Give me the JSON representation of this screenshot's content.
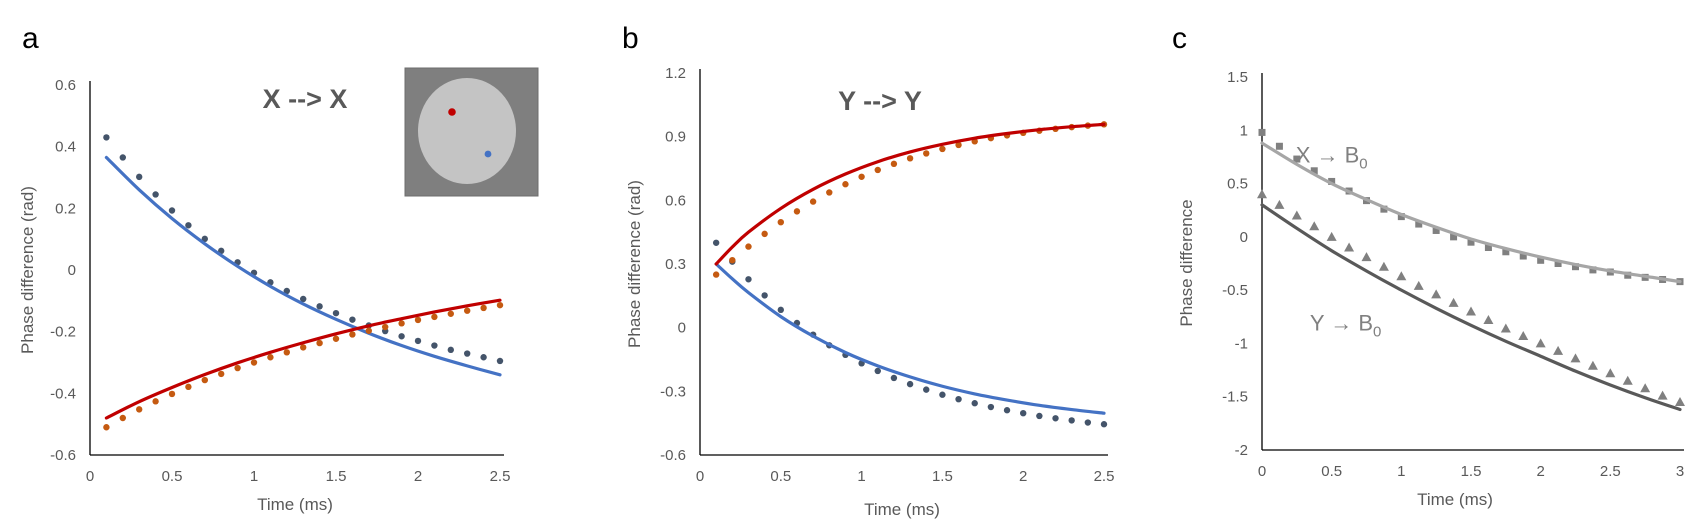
{
  "chart_data": [
    {
      "panel_label": "a",
      "type": "scatter",
      "title": "X --> X",
      "xlabel": "Time (ms)",
      "ylabel": "Phase difference (rad)",
      "xlim": [
        0,
        2.5
      ],
      "ylim": [
        -0.6,
        0.6
      ],
      "xticks": [
        0,
        0.5,
        1,
        1.5,
        2,
        2.5
      ],
      "xtick_labels": [
        "0",
        "0.5",
        "1",
        "1.5",
        "2",
        "2.5"
      ],
      "yticks": [
        -0.6,
        -0.4,
        -0.2,
        0,
        0.2,
        0.4,
        0.6
      ],
      "ytick_labels": [
        "-0.6",
        "-0.4",
        "-0.2",
        "0",
        "0.2",
        "0.4",
        "0.6"
      ],
      "inset": {
        "background": "#7f7f7f",
        "disc": "#c4c4c4",
        "red_dot": "#c00000",
        "blue_dot": "#4472c4"
      },
      "series": [
        {
          "name": "blue measured",
          "kind": "dots",
          "color": "#44546a",
          "x": [
            0.1,
            0.2,
            0.3,
            0.4,
            0.5,
            0.6,
            0.7,
            0.8,
            0.9,
            1.0,
            1.1,
            1.2,
            1.3,
            1.4,
            1.5,
            1.6,
            1.7,
            1.8,
            1.9,
            2.0,
            2.1,
            2.2,
            2.3,
            2.4,
            2.5
          ],
          "y": [
            0.43,
            0.365,
            0.302,
            0.245,
            0.193,
            0.145,
            0.101,
            0.062,
            0.025,
            -0.009,
            -0.04,
            -0.068,
            -0.094,
            -0.118,
            -0.14,
            -0.161,
            -0.18,
            -0.198,
            -0.215,
            -0.23,
            -0.245,
            -0.259,
            -0.271,
            -0.283,
            -0.295
          ]
        },
        {
          "name": "blue fit",
          "kind": "line",
          "color": "#4472c4",
          "x": [
            0.1,
            0.3,
            0.5,
            0.7,
            0.9,
            1.1,
            1.3,
            1.5,
            1.7,
            1.9,
            2.1,
            2.3,
            2.5
          ],
          "y": [
            0.365,
            0.26,
            0.167,
            0.085,
            0.012,
            -0.053,
            -0.11,
            -0.16,
            -0.205,
            -0.245,
            -0.28,
            -0.311,
            -0.34
          ]
        },
        {
          "name": "red measured",
          "kind": "dots",
          "color": "#c55a11",
          "x": [
            0.1,
            0.2,
            0.3,
            0.4,
            0.5,
            0.6,
            0.7,
            0.8,
            0.9,
            1.0,
            1.1,
            1.2,
            1.3,
            1.4,
            1.5,
            1.6,
            1.7,
            1.8,
            1.9,
            2.0,
            2.1,
            2.2,
            2.3,
            2.4,
            2.5
          ],
          "y": [
            -0.51,
            -0.48,
            -0.452,
            -0.426,
            -0.402,
            -0.379,
            -0.357,
            -0.337,
            -0.318,
            -0.3,
            -0.283,
            -0.267,
            -0.251,
            -0.237,
            -0.223,
            -0.209,
            -0.197,
            -0.185,
            -0.173,
            -0.162,
            -0.152,
            -0.142,
            -0.132,
            -0.123,
            -0.114
          ]
        },
        {
          "name": "red fit",
          "kind": "line",
          "color": "#c00000",
          "x": [
            0.1,
            0.3,
            0.5,
            0.7,
            0.9,
            1.1,
            1.3,
            1.5,
            1.7,
            1.9,
            2.1,
            2.3,
            2.5
          ],
          "y": [
            -0.48,
            -0.427,
            -0.381,
            -0.339,
            -0.301,
            -0.267,
            -0.236,
            -0.207,
            -0.181,
            -0.158,
            -0.136,
            -0.116,
            -0.098
          ]
        }
      ]
    },
    {
      "panel_label": "b",
      "type": "scatter",
      "title": "Y --> Y",
      "xlabel": "Time (ms)",
      "ylabel": "Phase difference (rad)",
      "xlim": [
        0,
        2.5
      ],
      "ylim": [
        -0.6,
        1.2
      ],
      "xticks": [
        0,
        0.5,
        1,
        1.5,
        2,
        2.5
      ],
      "xtick_labels": [
        "0",
        "0.5",
        "1",
        "1.5",
        "2",
        "2.5"
      ],
      "yticks": [
        -0.6,
        -0.3,
        0,
        0.3,
        0.6,
        0.9,
        1.2
      ],
      "ytick_labels": [
        "-0.6",
        "-0.3",
        "0",
        "0.3",
        "0.6",
        "0.9",
        "1.2"
      ],
      "series": [
        {
          "name": "blue measured",
          "kind": "dots",
          "color": "#44546a",
          "x": [
            0.1,
            0.2,
            0.3,
            0.4,
            0.5,
            0.6,
            0.7,
            0.8,
            0.9,
            1.0,
            1.1,
            1.2,
            1.3,
            1.4,
            1.5,
            1.6,
            1.7,
            1.8,
            1.9,
            2.0,
            2.1,
            2.2,
            2.3,
            2.4,
            2.5
          ],
          "y": [
            0.4,
            0.311,
            0.228,
            0.152,
            0.084,
            0.022,
            -0.033,
            -0.083,
            -0.128,
            -0.168,
            -0.204,
            -0.237,
            -0.266,
            -0.292,
            -0.316,
            -0.337,
            -0.356,
            -0.374,
            -0.389,
            -0.403,
            -0.416,
            -0.427,
            -0.437,
            -0.447,
            -0.455
          ]
        },
        {
          "name": "blue fit",
          "kind": "line",
          "color": "#4472c4",
          "x": [
            0.1,
            0.2,
            0.3,
            0.5,
            0.7,
            0.9,
            1.1,
            1.3,
            1.5,
            1.7,
            1.9,
            2.1,
            2.3,
            2.5
          ],
          "y": [
            0.3,
            0.23,
            0.165,
            0.052,
            -0.04,
            -0.117,
            -0.18,
            -0.232,
            -0.276,
            -0.312,
            -0.341,
            -0.366,
            -0.386,
            -0.403
          ]
        },
        {
          "name": "red measured",
          "kind": "dots",
          "color": "#c55a11",
          "x": [
            0.1,
            0.2,
            0.3,
            0.4,
            0.5,
            0.6,
            0.7,
            0.8,
            0.9,
            1.0,
            1.1,
            1.2,
            1.3,
            1.4,
            1.5,
            1.6,
            1.7,
            1.8,
            1.9,
            2.0,
            2.1,
            2.2,
            2.3,
            2.4,
            2.5
          ],
          "y": [
            0.25,
            0.318,
            0.382,
            0.442,
            0.497,
            0.548,
            0.594,
            0.637,
            0.676,
            0.711,
            0.743,
            0.772,
            0.798,
            0.821,
            0.842,
            0.861,
            0.878,
            0.893,
            0.906,
            0.918,
            0.928,
            0.937,
            0.945,
            0.952,
            0.958
          ]
        },
        {
          "name": "red fit",
          "kind": "line",
          "color": "#c00000",
          "x": [
            0.1,
            0.2,
            0.3,
            0.5,
            0.7,
            0.9,
            1.1,
            1.3,
            1.5,
            1.7,
            1.9,
            2.1,
            2.3,
            2.5
          ],
          "y": [
            0.3,
            0.38,
            0.45,
            0.562,
            0.652,
            0.724,
            0.782,
            0.828,
            0.864,
            0.893,
            0.915,
            0.933,
            0.947,
            0.958
          ]
        }
      ]
    },
    {
      "panel_label": "c",
      "type": "scatter",
      "title": "",
      "xlabel": "Time (ms)",
      "ylabel": "Phase difference",
      "xlim": [
        0,
        3
      ],
      "ylim": [
        -2,
        1.5
      ],
      "xticks": [
        0,
        0.5,
        1,
        1.5,
        2,
        2.5,
        3
      ],
      "xtick_labels": [
        "0",
        "0.5",
        "1",
        "1.5",
        "2",
        "2.5",
        "3"
      ],
      "yticks": [
        -2,
        -1.5,
        -1,
        -0.5,
        0,
        0.5,
        1,
        1.5
      ],
      "ytick_labels": [
        "-2",
        "-1.5",
        "-1",
        "-0.5",
        "0",
        "0.5",
        "1",
        "1.5"
      ],
      "annotations": [
        {
          "text": "X → B",
          "sub": "0",
          "x": 0.5,
          "y": 0.7
        },
        {
          "text": "Y → B",
          "sub": "0",
          "x": 0.6,
          "y": -0.88
        }
      ],
      "series": [
        {
          "name": "X to B0 measured",
          "kind": "squares",
          "color": "#808080",
          "x": [
            0,
            0.125,
            0.25,
            0.375,
            0.5,
            0.625,
            0.75,
            0.875,
            1.0,
            1.125,
            1.25,
            1.375,
            1.5,
            1.625,
            1.75,
            1.875,
            2.0,
            2.125,
            2.25,
            2.375,
            2.5,
            2.625,
            2.75,
            2.875,
            3.0
          ],
          "y": [
            0.98,
            0.85,
            0.73,
            0.62,
            0.52,
            0.43,
            0.34,
            0.26,
            0.19,
            0.12,
            0.06,
            0.0,
            -0.05,
            -0.1,
            -0.14,
            -0.18,
            -0.22,
            -0.25,
            -0.28,
            -0.31,
            -0.33,
            -0.36,
            -0.38,
            -0.4,
            -0.42
          ]
        },
        {
          "name": "X to B0 fit",
          "kind": "line",
          "color": "#a6a6a6",
          "x": [
            0,
            0.25,
            0.5,
            0.75,
            1.0,
            1.25,
            1.5,
            1.75,
            2.0,
            2.25,
            2.5,
            2.75,
            3.0
          ],
          "y": [
            0.88,
            0.68,
            0.5,
            0.35,
            0.21,
            0.09,
            -0.02,
            -0.11,
            -0.19,
            -0.26,
            -0.32,
            -0.37,
            -0.42
          ]
        },
        {
          "name": "Y to B0 measured",
          "kind": "triangles",
          "color": "#808080",
          "x": [
            0,
            0.125,
            0.25,
            0.375,
            0.5,
            0.625,
            0.75,
            0.875,
            1.0,
            1.125,
            1.25,
            1.375,
            1.5,
            1.625,
            1.75,
            1.875,
            2.0,
            2.125,
            2.25,
            2.375,
            2.5,
            2.625,
            2.75,
            2.875,
            3.0
          ],
          "y": [
            0.4,
            0.3,
            0.2,
            0.1,
            0.0,
            -0.1,
            -0.19,
            -0.28,
            -0.37,
            -0.46,
            -0.54,
            -0.62,
            -0.7,
            -0.78,
            -0.86,
            -0.93,
            -1.0,
            -1.07,
            -1.14,
            -1.21,
            -1.28,
            -1.35,
            -1.42,
            -1.49,
            -1.55
          ]
        },
        {
          "name": "Y to B0 fit",
          "kind": "line",
          "color": "#595959",
          "x": [
            0,
            0.25,
            0.5,
            0.75,
            1.0,
            1.25,
            1.5,
            1.75,
            2.0,
            2.25,
            2.5,
            2.75,
            3.0
          ],
          "y": [
            0.3,
            0.08,
            -0.13,
            -0.32,
            -0.5,
            -0.67,
            -0.83,
            -0.98,
            -1.12,
            -1.26,
            -1.39,
            -1.51,
            -1.62
          ]
        }
      ]
    }
  ]
}
